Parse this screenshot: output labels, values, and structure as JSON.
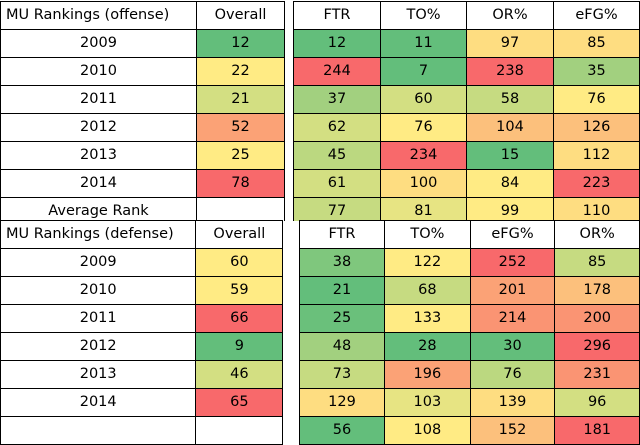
{
  "offense": {
    "title": "MU Rankings (offense)",
    "overall_header": "Overall",
    "stat_headers": [
      "FTR",
      "TO%",
      "OR%",
      "eFG%"
    ],
    "rows": [
      {
        "year": "2009",
        "overall": "12",
        "stats": [
          "12",
          "11",
          "97",
          "85"
        ],
        "colors": {
          "overall": "#63be7b",
          "stats": [
            "#63be7b",
            "#63be7b",
            "#fedd81",
            "#fedd81"
          ]
        }
      },
      {
        "year": "2010",
        "overall": "22",
        "stats": [
          "244",
          "7",
          "238",
          "35"
        ],
        "colors": {
          "overall": "#ffeb84",
          "stats": [
            "#f8696b",
            "#63be7b",
            "#f8696b",
            "#a2d07f"
          ]
        }
      },
      {
        "year": "2011",
        "overall": "21",
        "stats": [
          "37",
          "60",
          "58",
          "76"
        ],
        "colors": {
          "overall": "#d3df82",
          "stats": [
            "#a2d07f",
            "#d3df82",
            "#c6db81",
            "#ffeb84"
          ]
        }
      },
      {
        "year": "2012",
        "overall": "52",
        "stats": [
          "62",
          "76",
          "104",
          "126"
        ],
        "colors": {
          "overall": "#fba276",
          "stats": [
            "#d3df82",
            "#ffeb84",
            "#fcc07c",
            "#fcc07c"
          ]
        }
      },
      {
        "year": "2013",
        "overall": "25",
        "stats": [
          "45",
          "234",
          "15",
          "112"
        ],
        "colors": {
          "overall": "#ffeb84",
          "stats": [
            "#bbd880",
            "#f8696b",
            "#63be7b",
            "#fedd81"
          ]
        }
      },
      {
        "year": "2014",
        "overall": "78",
        "stats": [
          "61",
          "100",
          "84",
          "223"
        ],
        "colors": {
          "overall": "#f8696b",
          "stats": [
            "#d3df82",
            "#fedd81",
            "#ffeb84",
            "#f8696b"
          ]
        }
      }
    ],
    "footer": {
      "label": "Average Rank",
      "stats": [
        "77",
        "81",
        "99",
        "110"
      ],
      "colors": [
        "#c6db81",
        "#e7e483",
        "#ffeb84",
        "#fedd81"
      ]
    }
  },
  "defense": {
    "title": "MU Rankings (defense)",
    "overall_header": "Overall",
    "stat_headers": [
      "FTR",
      "TO%",
      "eFG%",
      "OR%"
    ],
    "rows": [
      {
        "year": "2009",
        "overall": "60",
        "stats": [
          "38",
          "122",
          "252",
          "85"
        ],
        "colors": {
          "overall": "#ffeb84",
          "stats": [
            "#7fc77d",
            "#ffeb84",
            "#f8696b",
            "#c6db81"
          ]
        }
      },
      {
        "year": "2010",
        "overall": "59",
        "stats": [
          "21",
          "68",
          "201",
          "178"
        ],
        "colors": {
          "overall": "#ffeb84",
          "stats": [
            "#63be7b",
            "#c6db81",
            "#fba276",
            "#fcc07c"
          ]
        }
      },
      {
        "year": "2011",
        "overall": "66",
        "stats": [
          "25",
          "133",
          "214",
          "200"
        ],
        "colors": {
          "overall": "#f8696b",
          "stats": [
            "#6ac07b",
            "#ffeb84",
            "#fa9473",
            "#fa9473"
          ]
        }
      },
      {
        "year": "2012",
        "overall": "9",
        "stats": [
          "48",
          "28",
          "30",
          "296"
        ],
        "colors": {
          "overall": "#63be7b",
          "stats": [
            "#a2d07f",
            "#63be7b",
            "#63be7b",
            "#f8696b"
          ]
        }
      },
      {
        "year": "2013",
        "overall": "46",
        "stats": [
          "73",
          "196",
          "76",
          "231"
        ],
        "colors": {
          "overall": "#d3df82",
          "stats": [
            "#c6db81",
            "#fba276",
            "#bbd880",
            "#fa9473"
          ]
        }
      },
      {
        "year": "2014",
        "overall": "65",
        "stats": [
          "129",
          "103",
          "139",
          "96"
        ],
        "colors": {
          "overall": "#f8696b",
          "stats": [
            "#fedd81",
            "#e7e483",
            "#fedd81",
            "#d3df82"
          ]
        }
      }
    ],
    "footer": {
      "label": "",
      "stats": [
        "56",
        "108",
        "152",
        "181"
      ],
      "colors": [
        "#63be7b",
        "#ffeb84",
        "#fcc07c",
        "#f8696b"
      ]
    }
  }
}
